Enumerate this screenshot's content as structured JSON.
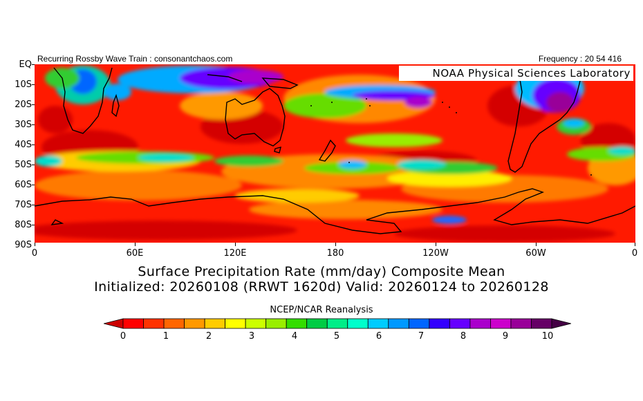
{
  "header": {
    "left": "Recurring Rossby Wave Train : consonantchaos.com",
    "right": "Frequency : 20 54 416",
    "lab": "NOAA Physical Sciences Laboratory"
  },
  "axes": {
    "lat_labels": [
      "EQ",
      "10S",
      "20S",
      "30S",
      "40S",
      "50S",
      "60S",
      "70S",
      "80S",
      "90S"
    ],
    "lon_labels": [
      "0",
      "60E",
      "120E",
      "180",
      "120W",
      "60W",
      "0"
    ]
  },
  "titles": {
    "line1": "Surface Precipitation Rate (mm/day) Composite Mean",
    "line2": "Initialized: 20260108 (RRWT 1620d) Valid: 20260124 to 20260128",
    "source": "NCEP/NCAR Reanalysis"
  },
  "colorbar": {
    "labels": [
      "0",
      "1",
      "2",
      "3",
      "4",
      "5",
      "6",
      "7",
      "8",
      "9",
      "10"
    ],
    "colors": [
      "#cc0000",
      "#ff0000",
      "#ff3300",
      "#ff6600",
      "#ff9900",
      "#ffcc00",
      "#ffff00",
      "#ccff00",
      "#99ee00",
      "#33dd00",
      "#00cc44",
      "#00ee88",
      "#00ffcc",
      "#00ccff",
      "#0099ff",
      "#0066ff",
      "#3300ff",
      "#6600ff",
      "#aa00cc",
      "#cc00cc",
      "#990099",
      "#660066",
      "#440044"
    ]
  }
}
